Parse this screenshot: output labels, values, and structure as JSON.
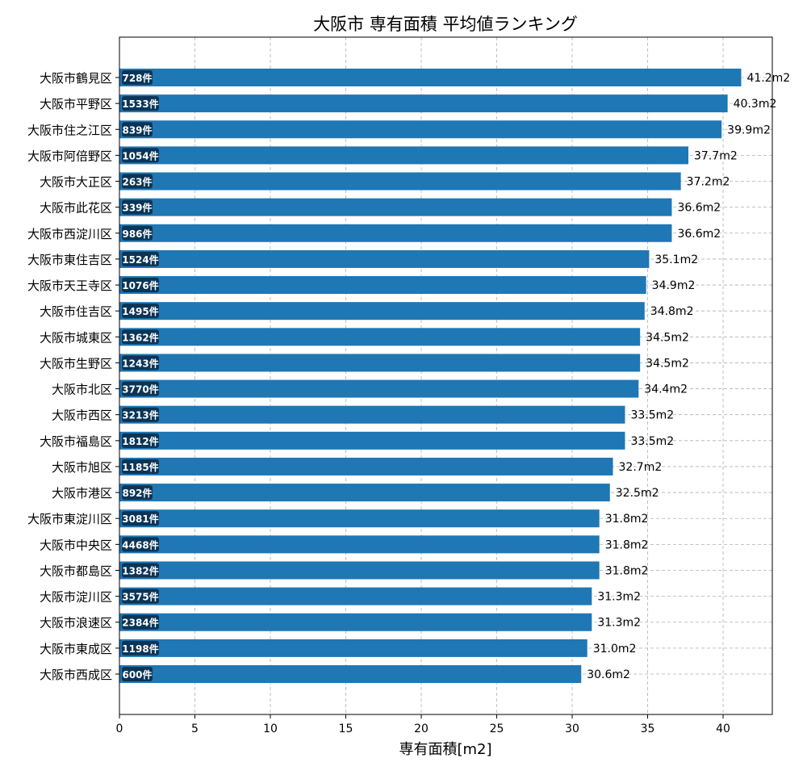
{
  "chart_data": {
    "type": "bar",
    "orientation": "horizontal",
    "title": "大阪市 専有面積 平均値ランキング",
    "xlabel": "専有面積[m2]",
    "ylabel": "",
    "xlim": [
      0,
      43.26
    ],
    "xticks": [
      0,
      5,
      10,
      15,
      20,
      25,
      30,
      35,
      40
    ],
    "grid": true,
    "bar_color": "#1f77b4",
    "count_badge_color": "#0b3557",
    "value_suffix": "m2",
    "count_suffix": "件",
    "categories": [
      "大阪市鶴見区",
      "大阪市平野区",
      "大阪市住之江区",
      "大阪市阿倍野区",
      "大阪市大正区",
      "大阪市此花区",
      "大阪市西淀川区",
      "大阪市東住吉区",
      "大阪市天王寺区",
      "大阪市住吉区",
      "大阪市城東区",
      "大阪市生野区",
      "大阪市北区",
      "大阪市西区",
      "大阪市福島区",
      "大阪市旭区",
      "大阪市港区",
      "大阪市東淀川区",
      "大阪市中央区",
      "大阪市都島区",
      "大阪市淀川区",
      "大阪市浪速区",
      "大阪市東成区",
      "大阪市西成区"
    ],
    "values": [
      41.2,
      40.3,
      39.9,
      37.7,
      37.2,
      36.6,
      36.6,
      35.1,
      34.9,
      34.8,
      34.5,
      34.5,
      34.4,
      33.5,
      33.5,
      32.7,
      32.5,
      31.8,
      31.8,
      31.8,
      31.3,
      31.3,
      31.0,
      30.6
    ],
    "value_labels": [
      "41.2m2",
      "40.3m2",
      "39.9m2",
      "37.7m2",
      "37.2m2",
      "36.6m2",
      "36.6m2",
      "35.1m2",
      "34.9m2",
      "34.8m2",
      "34.5m2",
      "34.5m2",
      "34.4m2",
      "33.5m2",
      "33.5m2",
      "32.7m2",
      "32.5m2",
      "31.8m2",
      "31.8m2",
      "31.8m2",
      "31.3m2",
      "31.3m2",
      "31.0m2",
      "30.6m2"
    ],
    "counts": [
      728,
      1533,
      839,
      1054,
      263,
      339,
      986,
      1524,
      1076,
      1495,
      1362,
      1243,
      3770,
      3213,
      1812,
      1185,
      892,
      3081,
      4468,
      1382,
      3575,
      2384,
      1198,
      600
    ],
    "count_labels": [
      "728件",
      "1533件",
      "839件",
      "1054件",
      "263件",
      "339件",
      "986件",
      "1524件",
      "1076件",
      "1495件",
      "1362件",
      "1243件",
      "3770件",
      "3213件",
      "1812件",
      "1185件",
      "892件",
      "3081件",
      "4468件",
      "1382件",
      "3575件",
      "2384件",
      "1198件",
      "600件"
    ]
  }
}
